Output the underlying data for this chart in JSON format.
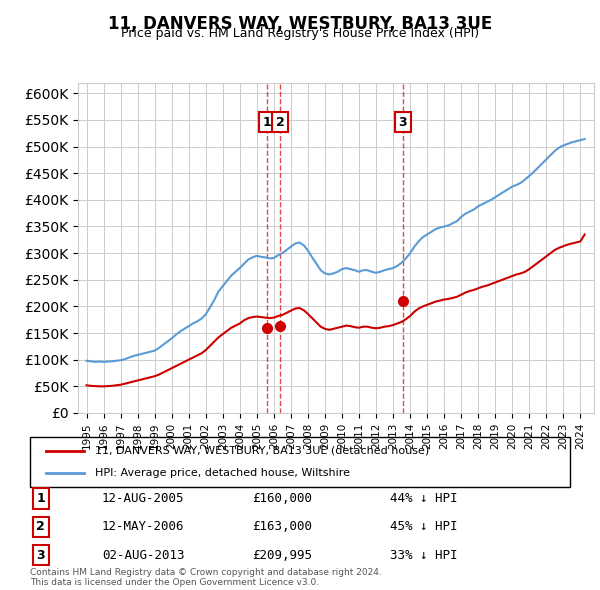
{
  "title": "11, DANVERS WAY, WESTBURY, BA13 3UE",
  "subtitle": "Price paid vs. HM Land Registry's House Price Index (HPI)",
  "ylabel_ticks": [
    "£0",
    "£50K",
    "£100K",
    "£150K",
    "£200K",
    "£250K",
    "£300K",
    "£350K",
    "£400K",
    "£450K",
    "£500K",
    "£550K",
    "£600K"
  ],
  "ytick_values": [
    0,
    50000,
    100000,
    150000,
    200000,
    250000,
    300000,
    350000,
    400000,
    450000,
    500000,
    550000,
    600000
  ],
  "ylim": [
    0,
    620000
  ],
  "hpi_color": "#5b9bd5",
  "price_color": "#cc0000",
  "transactions": [
    {
      "num": 1,
      "date": "12-AUG-2005",
      "price": 160000,
      "pct": "44% ↓ HPI",
      "x": 2005.61
    },
    {
      "num": 2,
      "date": "12-MAY-2006",
      "price": 163000,
      "pct": "45% ↓ HPI",
      "x": 2006.36
    },
    {
      "num": 3,
      "date": "02-AUG-2013",
      "price": 209995,
      "pct": "33% ↓ HPI",
      "x": 2013.58
    }
  ],
  "legend_label_red": "11, DANVERS WAY, WESTBURY, BA13 3UE (detached house)",
  "legend_label_blue": "HPI: Average price, detached house, Wiltshire",
  "footnote": "Contains HM Land Registry data © Crown copyright and database right 2024.\nThis data is licensed under the Open Government Licence v3.0.",
  "background_color": "#ffffff",
  "hpi_data": {
    "years": [
      1995.0,
      1995.25,
      1995.5,
      1995.75,
      1996.0,
      1996.25,
      1996.5,
      1996.75,
      1997.0,
      1997.25,
      1997.5,
      1997.75,
      1998.0,
      1998.25,
      1998.5,
      1998.75,
      1999.0,
      1999.25,
      1999.5,
      1999.75,
      2000.0,
      2000.25,
      2000.5,
      2000.75,
      2001.0,
      2001.25,
      2001.5,
      2001.75,
      2002.0,
      2002.25,
      2002.5,
      2002.75,
      2003.0,
      2003.25,
      2003.5,
      2003.75,
      2004.0,
      2004.25,
      2004.5,
      2004.75,
      2005.0,
      2005.25,
      2005.5,
      2005.75,
      2006.0,
      2006.25,
      2006.5,
      2006.75,
      2007.0,
      2007.25,
      2007.5,
      2007.75,
      2008.0,
      2008.25,
      2008.5,
      2008.75,
      2009.0,
      2009.25,
      2009.5,
      2009.75,
      2010.0,
      2010.25,
      2010.5,
      2010.75,
      2011.0,
      2011.25,
      2011.5,
      2011.75,
      2012.0,
      2012.25,
      2012.5,
      2012.75,
      2013.0,
      2013.25,
      2013.5,
      2013.75,
      2014.0,
      2014.25,
      2014.5,
      2014.75,
      2015.0,
      2015.25,
      2015.5,
      2015.75,
      2016.0,
      2016.25,
      2016.5,
      2016.75,
      2017.0,
      2017.25,
      2017.5,
      2017.75,
      2018.0,
      2018.25,
      2018.5,
      2018.75,
      2019.0,
      2019.25,
      2019.5,
      2019.75,
      2020.0,
      2020.25,
      2020.5,
      2020.75,
      2021.0,
      2021.25,
      2021.5,
      2021.75,
      2022.0,
      2022.25,
      2022.5,
      2022.75,
      2023.0,
      2023.25,
      2023.5,
      2023.75,
      2024.0,
      2024.25
    ],
    "values": [
      98000,
      97000,
      96000,
      96500,
      96000,
      96500,
      97000,
      98000,
      99000,
      101000,
      104000,
      107000,
      109000,
      111000,
      113000,
      115000,
      117000,
      122000,
      128000,
      134000,
      140000,
      147000,
      153000,
      158000,
      163000,
      168000,
      172000,
      177000,
      185000,
      198000,
      212000,
      228000,
      238000,
      248000,
      258000,
      265000,
      272000,
      280000,
      288000,
      292000,
      295000,
      293000,
      292000,
      290000,
      291000,
      296000,
      300000,
      306000,
      312000,
      318000,
      320000,
      315000,
      305000,
      292000,
      280000,
      268000,
      262000,
      260000,
      262000,
      265000,
      270000,
      272000,
      270000,
      268000,
      265000,
      268000,
      268000,
      265000,
      263000,
      265000,
      268000,
      270000,
      272000,
      276000,
      282000,
      290000,
      300000,
      312000,
      322000,
      330000,
      335000,
      340000,
      345000,
      348000,
      350000,
      352000,
      356000,
      360000,
      368000,
      374000,
      378000,
      382000,
      388000,
      392000,
      396000,
      400000,
      405000,
      410000,
      415000,
      420000,
      425000,
      428000,
      432000,
      438000,
      445000,
      452000,
      460000,
      468000,
      476000,
      484000,
      492000,
      498000,
      502000,
      505000,
      508000,
      510000,
      512000,
      514000
    ]
  },
  "red_data": {
    "years": [
      1995.0,
      1995.25,
      1995.5,
      1995.75,
      1996.0,
      1996.25,
      1996.5,
      1996.75,
      1997.0,
      1997.25,
      1997.5,
      1997.75,
      1998.0,
      1998.25,
      1998.5,
      1998.75,
      1999.0,
      1999.25,
      1999.5,
      1999.75,
      2000.0,
      2000.25,
      2000.5,
      2000.75,
      2001.0,
      2001.25,
      2001.5,
      2001.75,
      2002.0,
      2002.25,
      2002.5,
      2002.75,
      2003.0,
      2003.25,
      2003.5,
      2003.75,
      2004.0,
      2004.25,
      2004.5,
      2004.75,
      2005.0,
      2005.25,
      2005.5,
      2005.75,
      2006.0,
      2006.25,
      2006.5,
      2006.75,
      2007.0,
      2007.25,
      2007.5,
      2007.75,
      2008.0,
      2008.25,
      2008.5,
      2008.75,
      2009.0,
      2009.25,
      2009.5,
      2009.75,
      2010.0,
      2010.25,
      2010.5,
      2010.75,
      2011.0,
      2011.25,
      2011.5,
      2011.75,
      2012.0,
      2012.25,
      2012.5,
      2012.75,
      2013.0,
      2013.25,
      2013.5,
      2013.75,
      2014.0,
      2014.25,
      2014.5,
      2014.75,
      2015.0,
      2015.25,
      2015.5,
      2015.75,
      2016.0,
      2016.25,
      2016.5,
      2016.75,
      2017.0,
      2017.25,
      2017.5,
      2017.75,
      2018.0,
      2018.25,
      2018.5,
      2018.75,
      2019.0,
      2019.25,
      2019.5,
      2019.75,
      2020.0,
      2020.25,
      2020.5,
      2020.75,
      2021.0,
      2021.25,
      2021.5,
      2021.75,
      2022.0,
      2022.25,
      2022.5,
      2022.75,
      2023.0,
      2023.25,
      2023.5,
      2023.75,
      2024.0,
      2024.25
    ],
    "values": [
      52000,
      51000,
      50500,
      50000,
      50000,
      50500,
      51000,
      52000,
      53000,
      55000,
      57000,
      59000,
      61000,
      63000,
      65000,
      67000,
      69000,
      72000,
      76000,
      80000,
      84000,
      88000,
      92000,
      96000,
      100000,
      104000,
      108000,
      112000,
      118000,
      126000,
      134000,
      142000,
      148000,
      154000,
      160000,
      164000,
      168000,
      174000,
      178000,
      180000,
      181000,
      180000,
      179000,
      178000,
      179000,
      182000,
      184000,
      188000,
      192000,
      196000,
      197000,
      193000,
      186000,
      178000,
      170000,
      162000,
      158000,
      156000,
      158000,
      160000,
      162000,
      164000,
      163000,
      161000,
      160000,
      162000,
      162000,
      160000,
      159000,
      160000,
      162000,
      163000,
      165000,
      168000,
      171000,
      176000,
      182000,
      190000,
      196000,
      200000,
      203000,
      206000,
      209000,
      211000,
      213000,
      214000,
      216000,
      218000,
      222000,
      226000,
      229000,
      231000,
      234000,
      237000,
      239000,
      242000,
      245000,
      248000,
      251000,
      254000,
      257000,
      260000,
      262000,
      265000,
      270000,
      276000,
      282000,
      288000,
      294000,
      300000,
      306000,
      310000,
      313000,
      316000,
      318000,
      320000,
      322000,
      335000
    ]
  }
}
